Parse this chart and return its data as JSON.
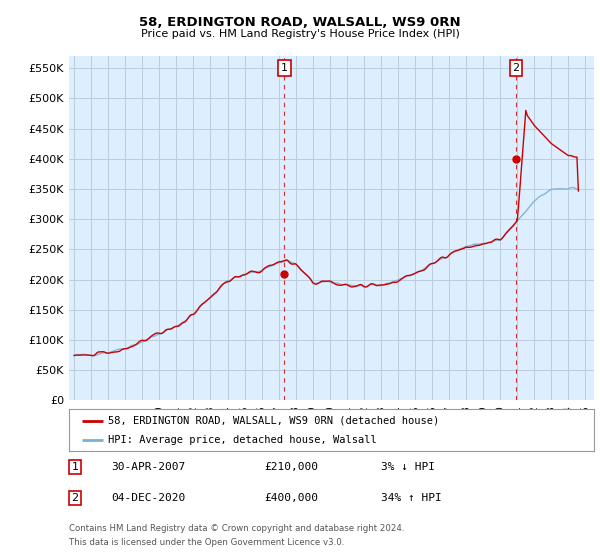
{
  "title": "58, ERDINGTON ROAD, WALSALL, WS9 0RN",
  "subtitle": "Price paid vs. HM Land Registry's House Price Index (HPI)",
  "ylabel_ticks": [
    "£0",
    "£50K",
    "£100K",
    "£150K",
    "£200K",
    "£250K",
    "£300K",
    "£350K",
    "£400K",
    "£450K",
    "£500K",
    "£550K"
  ],
  "ytick_values": [
    0,
    50000,
    100000,
    150000,
    200000,
    250000,
    300000,
    350000,
    400000,
    450000,
    500000,
    550000
  ],
  "ylim": [
    0,
    570000
  ],
  "xlim_start": 1994.7,
  "xlim_end": 2025.5,
  "sale1_x": 2007.33,
  "sale1_y": 210000,
  "sale1_label": "1",
  "sale2_x": 2020.92,
  "sale2_y": 400000,
  "sale2_label": "2",
  "red_color": "#cc0000",
  "blue_color": "#7ab0d4",
  "chart_bg_color": "#ddeeff",
  "background_color": "#ffffff",
  "grid_color": "#bbccdd",
  "annotation_box_color": "#cc0000",
  "legend_line1": "58, ERDINGTON ROAD, WALSALL, WS9 0RN (detached house)",
  "legend_line2": "HPI: Average price, detached house, Walsall",
  "table_row1": [
    "1",
    "30-APR-2007",
    "£210,000",
    "3% ↓ HPI"
  ],
  "table_row2": [
    "2",
    "04-DEC-2020",
    "£400,000",
    "34% ↑ HPI"
  ],
  "footer1": "Contains HM Land Registry data © Crown copyright and database right 2024.",
  "footer2": "This data is licensed under the Open Government Licence v3.0."
}
